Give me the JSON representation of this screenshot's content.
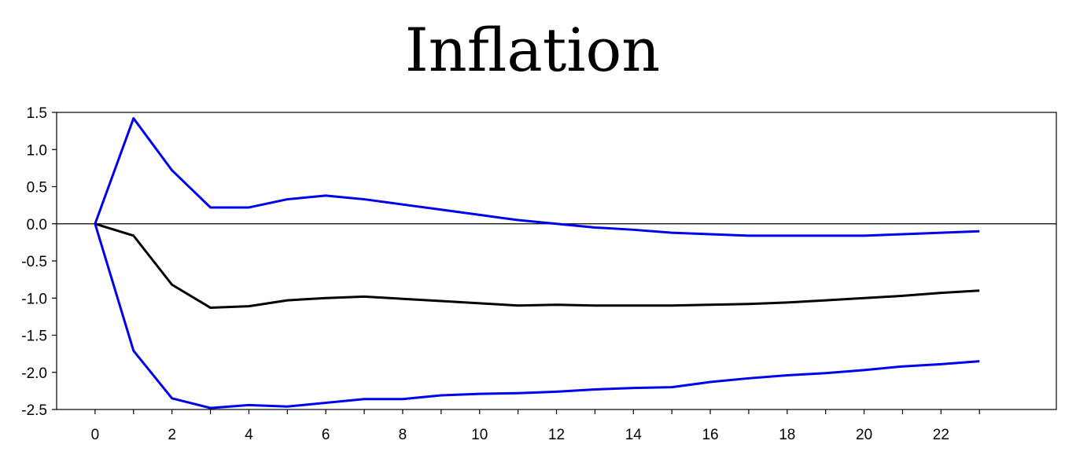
{
  "chart_data": {
    "type": "line",
    "title": "Inflation",
    "xlabel": "",
    "ylabel": "",
    "xlim": [
      -1,
      25
    ],
    "ylim": [
      -2.5,
      1.5
    ],
    "x": [
      0,
      1,
      2,
      3,
      4,
      5,
      6,
      7,
      8,
      9,
      10,
      11,
      12,
      13,
      14,
      15,
      16,
      17,
      18,
      19,
      20,
      21,
      22,
      23
    ],
    "x_ticks": [
      0,
      2,
      4,
      6,
      8,
      10,
      12,
      14,
      16,
      18,
      20,
      22
    ],
    "y_ticks": [
      1.5,
      1.0,
      0.5,
      0.0,
      -0.5,
      -1.0,
      -1.5,
      -2.0,
      -2.5
    ],
    "y_tick_labels": [
      "1.5",
      "1.0",
      "0.5",
      "0.0",
      "-0.5",
      "-1.0",
      "-1.5",
      "-2.0",
      "-2.5"
    ],
    "zero_line": true,
    "grid": false,
    "series": [
      {
        "color": "#0000ee",
        "values": [
          0,
          1.42,
          0.72,
          0.22,
          0.22,
          0.33,
          0.38,
          0.33,
          0.26,
          0.19,
          0.12,
          0.05,
          0.0,
          -0.05,
          -0.08,
          -0.12,
          -0.14,
          -0.16,
          -0.16,
          -0.16,
          -0.16,
          -0.14,
          -0.12,
          -0.1
        ]
      },
      {
        "color": "#000000",
        "values": [
          0,
          -0.16,
          -0.82,
          -1.13,
          -1.11,
          -1.03,
          -1.0,
          -0.98,
          -1.01,
          -1.04,
          -1.07,
          -1.1,
          -1.09,
          -1.1,
          -1.1,
          -1.1,
          -1.09,
          -1.08,
          -1.06,
          -1.03,
          -1.0,
          -0.97,
          -0.93,
          -0.9
        ]
      },
      {
        "color": "#0000ee",
        "values": [
          0,
          -1.71,
          -2.35,
          -2.48,
          -2.44,
          -2.46,
          -2.41,
          -2.36,
          -2.36,
          -2.31,
          -2.29,
          -2.28,
          -2.26,
          -2.23,
          -2.21,
          -2.2,
          -2.13,
          -2.08,
          -2.04,
          -2.01,
          -1.97,
          -1.92,
          -1.89,
          -1.85
        ]
      }
    ]
  }
}
